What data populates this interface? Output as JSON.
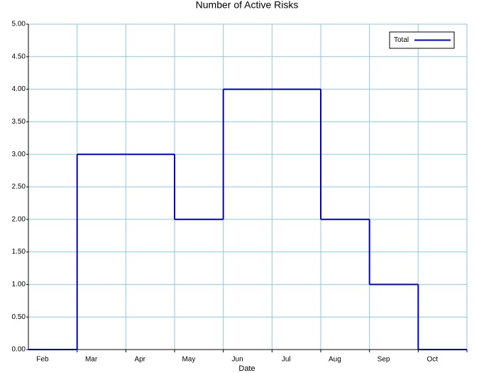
{
  "chart_data": {
    "type": "step",
    "title": "Number of Active Risks",
    "x_label": "Date",
    "categories": [
      "Feb",
      "Mar",
      "Apr",
      "May",
      "Jun",
      "Jul",
      "Aug",
      "Sep",
      "Oct"
    ],
    "series": [
      {
        "name": "Total",
        "color": "#0000cc",
        "values": [
          0,
          3,
          3,
          2,
          4,
          4,
          2,
          1,
          0
        ]
      }
    ],
    "ylim": [
      0,
      5
    ],
    "yticks": [
      {
        "value": 0,
        "label": "0.00"
      },
      {
        "value": 0.5,
        "label": "0.50"
      },
      {
        "value": 1,
        "label": "1.00"
      },
      {
        "value": 1.5,
        "label": "1.50"
      },
      {
        "value": 2,
        "label": "2.00"
      },
      {
        "value": 2.5,
        "label": "2.50"
      },
      {
        "value": 3,
        "label": "3.00"
      },
      {
        "value": 3.5,
        "label": "3.50"
      },
      {
        "value": 4,
        "label": "4.00"
      },
      {
        "value": 4.5,
        "label": "4.50"
      },
      {
        "value": 5,
        "label": "5.00"
      }
    ],
    "grid": true,
    "grid_color": "#8ecae0",
    "legend": "top-right"
  }
}
